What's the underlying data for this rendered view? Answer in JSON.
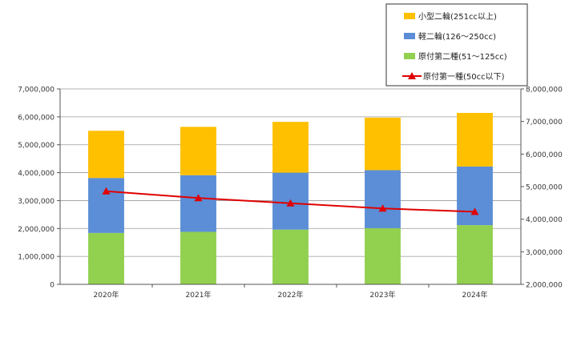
{
  "chart_data": {
    "type": "bar",
    "stacked": true,
    "categories": [
      "2020年",
      "2021年",
      "2022年",
      "2023年",
      "2024年"
    ],
    "series": [
      {
        "name": "原付第二種(51～125cc)",
        "values": [
          1840000,
          1880000,
          1960000,
          2010000,
          2120000
        ],
        "color": "#92D050",
        "axis": "left"
      },
      {
        "name": "軽二輪(126～250cc)",
        "values": [
          1970000,
          2030000,
          2040000,
          2080000,
          2100000
        ],
        "color": "#5B8ED6",
        "axis": "left"
      },
      {
        "name": "小型二輪(251cc以上)",
        "values": [
          1690000,
          1730000,
          1820000,
          1880000,
          1920000
        ],
        "color": "#FFC000",
        "axis": "left"
      },
      {
        "name": "原付第一種(50cc以下)",
        "values": [
          4860000,
          4650000,
          4490000,
          4330000,
          4230000
        ],
        "color": "#E00000",
        "type": "line",
        "marker": "triangle",
        "axis": "right"
      }
    ],
    "y_left": {
      "min": 0,
      "max": 7000000,
      "step": 1000000,
      "tick_labels": [
        "0",
        "1,000,000",
        "2,000,000",
        "3,000,000",
        "4,000,000",
        "5,000,000",
        "6,000,000",
        "7,000,000"
      ]
    },
    "y_right": {
      "min": 2000000,
      "max": 8000000,
      "step": 1000000,
      "tick_labels": [
        "2,000,000",
        "3,000,000",
        "4,000,000",
        "5,000,000",
        "6,000,000",
        "7,000,000",
        "8,000,000"
      ]
    },
    "grid": true,
    "legend_position": "top-right",
    "legend_order": [
      2,
      1,
      0,
      3
    ]
  }
}
